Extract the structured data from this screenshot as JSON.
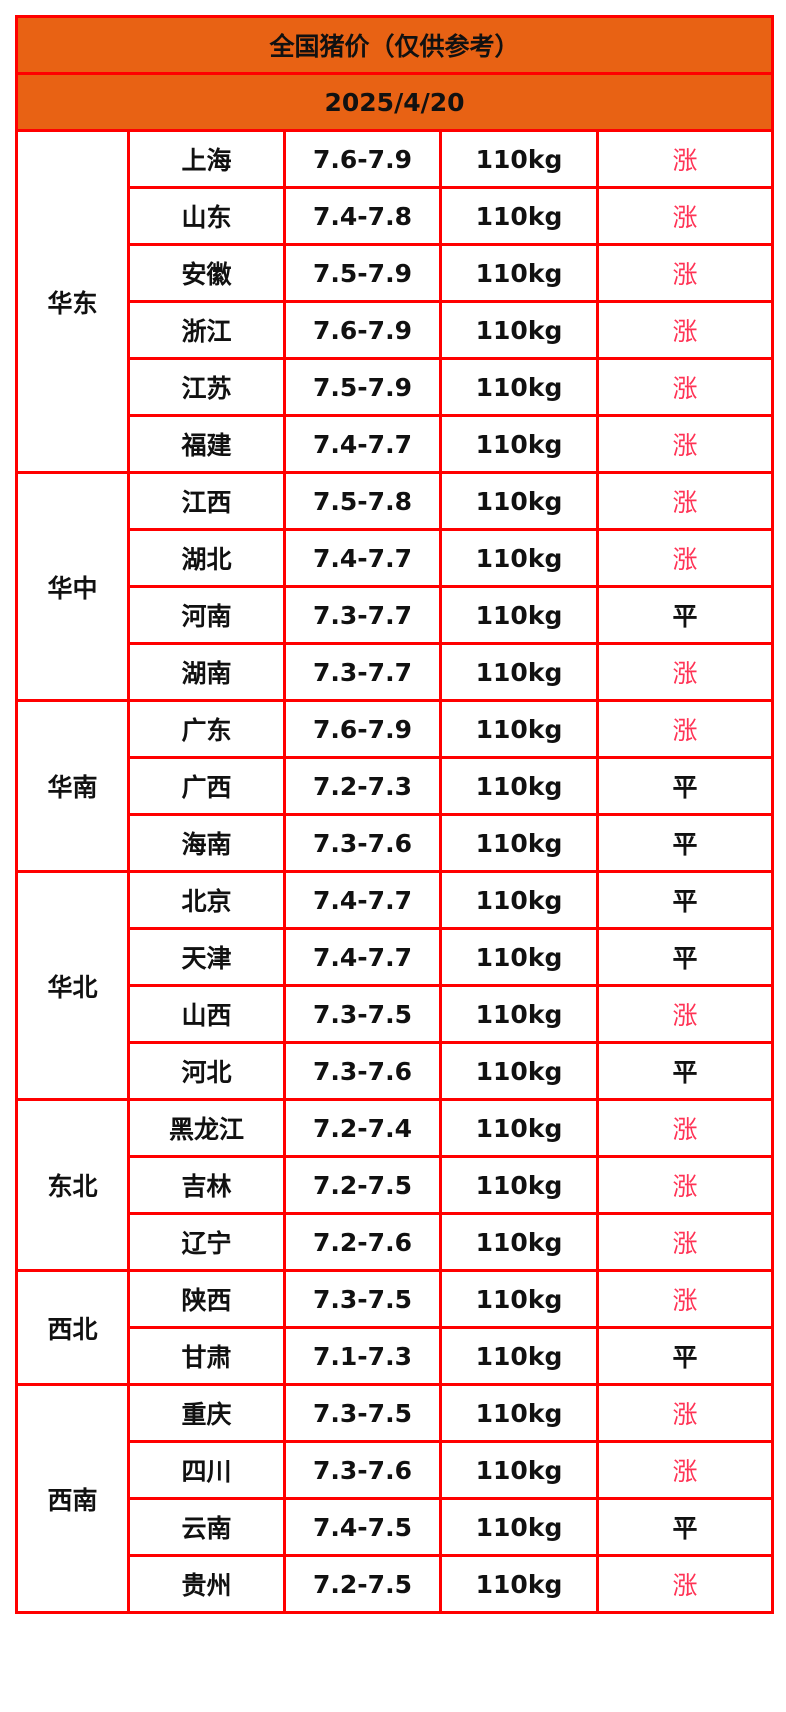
{
  "title": "全国猪价（仅供参考）",
  "date": "2025/4/20",
  "colors": {
    "header_bg": "#e86214",
    "border": "#ff0000",
    "up": "#ff3355",
    "flat": "#111111"
  },
  "regions": [
    {
      "name": "华东",
      "rows": [
        {
          "province": "上海",
          "price": "7.6-7.9",
          "weight": "110kg",
          "trend": "涨"
        },
        {
          "province": "山东",
          "price": "7.4-7.8",
          "weight": "110kg",
          "trend": "涨"
        },
        {
          "province": "安徽",
          "price": "7.5-7.9",
          "weight": "110kg",
          "trend": "涨"
        },
        {
          "province": "浙江",
          "price": "7.6-7.9",
          "weight": "110kg",
          "trend": "涨"
        },
        {
          "province": "江苏",
          "price": "7.5-7.9",
          "weight": "110kg",
          "trend": "涨"
        },
        {
          "province": "福建",
          "price": "7.4-7.7",
          "weight": "110kg",
          "trend": "涨"
        }
      ]
    },
    {
      "name": "华中",
      "rows": [
        {
          "province": "江西",
          "price": "7.5-7.8",
          "weight": "110kg",
          "trend": "涨"
        },
        {
          "province": "湖北",
          "price": "7.4-7.7",
          "weight": "110kg",
          "trend": "涨"
        },
        {
          "province": "河南",
          "price": "7.3-7.7",
          "weight": "110kg",
          "trend": "平"
        },
        {
          "province": "湖南",
          "price": "7.3-7.7",
          "weight": "110kg",
          "trend": "涨"
        }
      ]
    },
    {
      "name": "华南",
      "rows": [
        {
          "province": "广东",
          "price": "7.6-7.9",
          "weight": "110kg",
          "trend": "涨"
        },
        {
          "province": "广西",
          "price": "7.2-7.3",
          "weight": "110kg",
          "trend": "平"
        },
        {
          "province": "海南",
          "price": "7.3-7.6",
          "weight": "110kg",
          "trend": "平"
        }
      ]
    },
    {
      "name": "华北",
      "rows": [
        {
          "province": "北京",
          "price": "7.4-7.7",
          "weight": "110kg",
          "trend": "平"
        },
        {
          "province": "天津",
          "price": "7.4-7.7",
          "weight": "110kg",
          "trend": "平"
        },
        {
          "province": "山西",
          "price": "7.3-7.5",
          "weight": "110kg",
          "trend": "涨"
        },
        {
          "province": "河北",
          "price": "7.3-7.6",
          "weight": "110kg",
          "trend": "平"
        }
      ]
    },
    {
      "name": "东北",
      "rows": [
        {
          "province": "黑龙江",
          "price": "7.2-7.4",
          "weight": "110kg",
          "trend": "涨"
        },
        {
          "province": "吉林",
          "price": "7.2-7.5",
          "weight": "110kg",
          "trend": "涨"
        },
        {
          "province": "辽宁",
          "price": "7.2-7.6",
          "weight": "110kg",
          "trend": "涨"
        }
      ]
    },
    {
      "name": "西北",
      "rows": [
        {
          "province": "陕西",
          "price": "7.3-7.5",
          "weight": "110kg",
          "trend": "涨"
        },
        {
          "province": "甘肃",
          "price": "7.1-7.3",
          "weight": "110kg",
          "trend": "平"
        }
      ]
    },
    {
      "name": "西南",
      "rows": [
        {
          "province": "重庆",
          "price": "7.3-7.5",
          "weight": "110kg",
          "trend": "涨"
        },
        {
          "province": "四川",
          "price": "7.3-7.6",
          "weight": "110kg",
          "trend": "涨"
        },
        {
          "province": "云南",
          "price": "7.4-7.5",
          "weight": "110kg",
          "trend": "平"
        },
        {
          "province": "贵州",
          "price": "7.2-7.5",
          "weight": "110kg",
          "trend": "涨"
        }
      ]
    }
  ]
}
